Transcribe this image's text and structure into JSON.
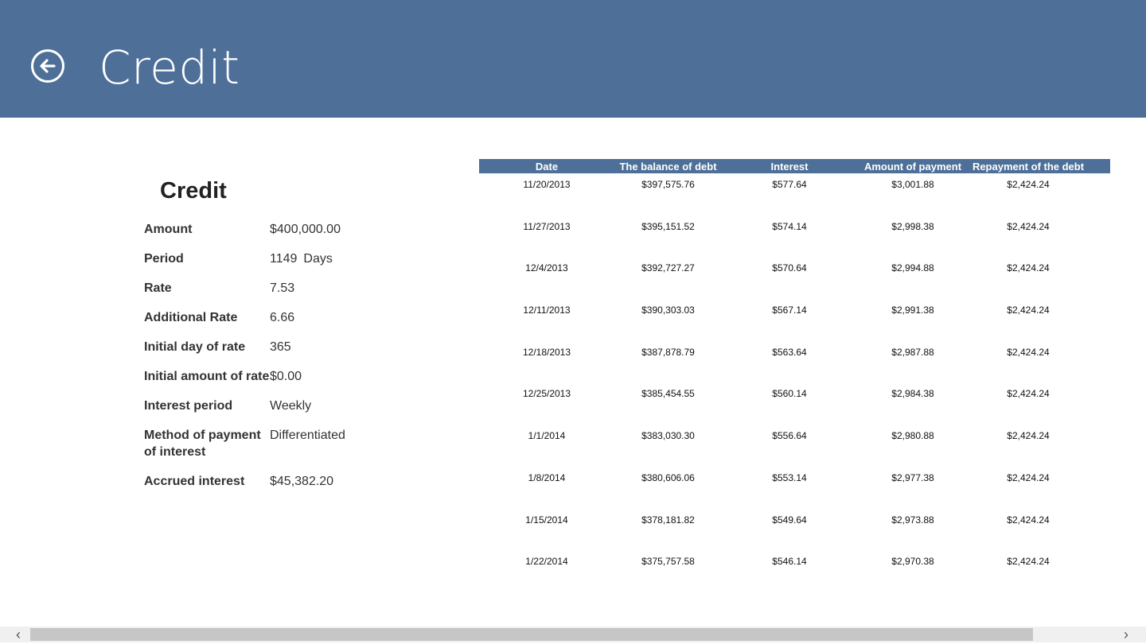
{
  "header": {
    "title": "Credit",
    "back_icon": "back-arrow-icon",
    "color": "#4e7098"
  },
  "details": {
    "title": "Credit",
    "rows": [
      {
        "label": "Amount",
        "value": "$400,000.00"
      },
      {
        "label": "Period",
        "value": "1149",
        "unit": "Days"
      },
      {
        "label": "Rate",
        "value": "7.53"
      },
      {
        "label": "Additional Rate",
        "value": "6.66"
      },
      {
        "label": "Initial day of rate",
        "value": "365"
      },
      {
        "label": "Initial amount of rate",
        "value": "$0.00"
      },
      {
        "label": "Interest period",
        "value": "Weekly"
      },
      {
        "label": "Method of payment of interest",
        "value": "Differentiated"
      },
      {
        "label": "Accrued interest",
        "value": "$45,382.20"
      }
    ]
  },
  "schedule": {
    "columns": [
      "Date",
      "The balance of debt",
      "Interest",
      "Amount of payment",
      "Repayment of the debt"
    ],
    "rows": [
      [
        "11/20/2013",
        "$397,575.76",
        "$577.64",
        "$3,001.88",
        "$2,424.24"
      ],
      [
        "11/27/2013",
        "$395,151.52",
        "$574.14",
        "$2,998.38",
        "$2,424.24"
      ],
      [
        "12/4/2013",
        "$392,727.27",
        "$570.64",
        "$2,994.88",
        "$2,424.24"
      ],
      [
        "12/11/2013",
        "$390,303.03",
        "$567.14",
        "$2,991.38",
        "$2,424.24"
      ],
      [
        "12/18/2013",
        "$387,878.79",
        "$563.64",
        "$2,987.88",
        "$2,424.24"
      ],
      [
        "12/25/2013",
        "$385,454.55",
        "$560.14",
        "$2,984.38",
        "$2,424.24"
      ],
      [
        "1/1/2014",
        "$383,030.30",
        "$556.64",
        "$2,980.88",
        "$2,424.24"
      ],
      [
        "1/8/2014",
        "$380,606.06",
        "$553.14",
        "$2,977.38",
        "$2,424.24"
      ],
      [
        "1/15/2014",
        "$378,181.82",
        "$549.64",
        "$2,973.88",
        "$2,424.24"
      ],
      [
        "1/22/2014",
        "$375,757.58",
        "$546.14",
        "$2,970.38",
        "$2,424.24"
      ]
    ]
  },
  "scrollbar": {
    "left_icon": "chevron-left-icon",
    "right_icon": "chevron-right-icon",
    "left_glyph": "‹",
    "right_glyph": "›"
  }
}
